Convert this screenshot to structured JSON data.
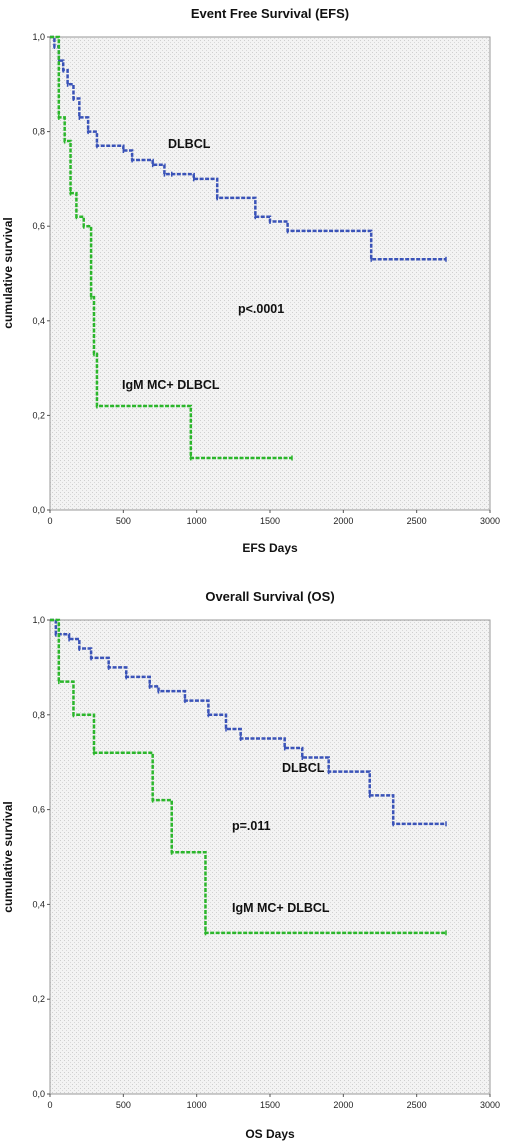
{
  "colors": {
    "DLBCL": "#3a53b8",
    "IgM MC+ DLBCL": "#2bb62b"
  },
  "chart_data": [
    {
      "type": "line",
      "title": "Event Free Survival (EFS)",
      "xlabel": "EFS Days",
      "ylabel": "cumulative survival",
      "xlim": [
        0,
        3000
      ],
      "ylim": [
        0,
        1
      ],
      "xticks": [
        "0",
        "500",
        "1000",
        "1500",
        "2000",
        "2500",
        "3000"
      ],
      "yticks": [
        "0,0",
        "0,2",
        "0,4",
        "0,6",
        "0,8",
        "1,0"
      ],
      "grid": false,
      "series": [
        {
          "name": "DLBCL",
          "step": true,
          "x": [
            0,
            30,
            60,
            90,
            120,
            160,
            200,
            260,
            320,
            500,
            560,
            700,
            780,
            830,
            980,
            1140,
            1400,
            1500,
            1620,
            2190,
            2700
          ],
          "y": [
            1.0,
            0.98,
            0.95,
            0.93,
            0.9,
            0.87,
            0.83,
            0.8,
            0.77,
            0.76,
            0.74,
            0.73,
            0.71,
            0.71,
            0.7,
            0.66,
            0.62,
            0.61,
            0.59,
            0.53,
            0.53
          ]
        },
        {
          "name": "IgM MC+ DLBCL",
          "step": true,
          "x": [
            0,
            60,
            100,
            140,
            180,
            230,
            280,
            300,
            320,
            960,
            1650
          ],
          "y": [
            1.0,
            0.83,
            0.78,
            0.67,
            0.62,
            0.6,
            0.45,
            0.33,
            0.22,
            0.11,
            0.11
          ]
        }
      ],
      "annotations": [
        "DLBCL",
        "IgM MC+ DLBCL",
        "p<.0001"
      ]
    },
    {
      "type": "line",
      "title": "Overall Survival (OS)",
      "xlabel": "OS Days",
      "ylabel": "cumulative survival",
      "xlim": [
        0,
        3000
      ],
      "ylim": [
        0,
        1
      ],
      "xticks": [
        "0",
        "500",
        "1000",
        "1500",
        "2000",
        "2500",
        "3000"
      ],
      "yticks": [
        "0,0",
        "0,2",
        "0,4",
        "0,6",
        "0,8",
        "1,0"
      ],
      "grid": false,
      "series": [
        {
          "name": "DLBCL",
          "step": true,
          "x": [
            0,
            40,
            130,
            200,
            280,
            400,
            520,
            680,
            740,
            920,
            1080,
            1200,
            1300,
            1600,
            1720,
            1900,
            2180,
            2340,
            2700
          ],
          "y": [
            1.0,
            0.97,
            0.96,
            0.94,
            0.92,
            0.9,
            0.88,
            0.86,
            0.85,
            0.83,
            0.8,
            0.77,
            0.75,
            0.73,
            0.71,
            0.68,
            0.63,
            0.57,
            0.57
          ]
        },
        {
          "name": "IgM MC+ DLBCL",
          "step": true,
          "x": [
            0,
            60,
            160,
            300,
            700,
            830,
            1060,
            2700
          ],
          "y": [
            1.0,
            0.87,
            0.8,
            0.72,
            0.62,
            0.51,
            0.34,
            0.34
          ]
        }
      ],
      "annotations": [
        "DLBCL",
        "IgM MC+ DLBCL",
        "p=.011"
      ]
    }
  ]
}
